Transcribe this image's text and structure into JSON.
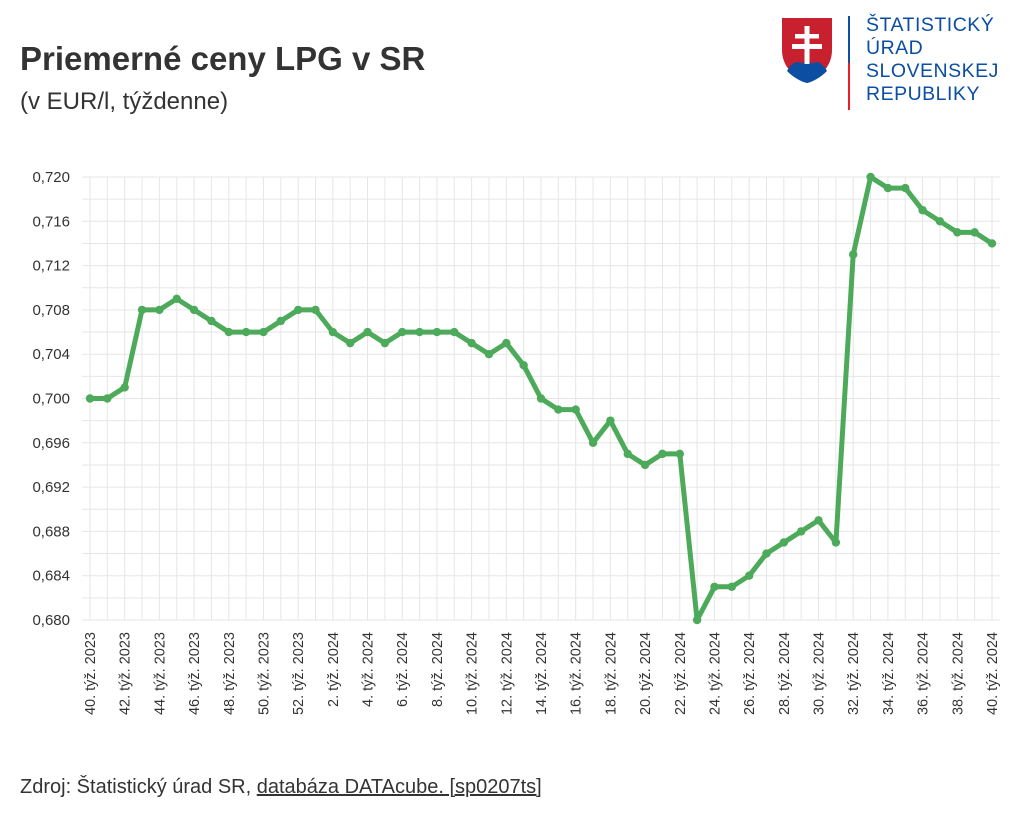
{
  "header": {
    "title": "Priemerné ceny LPG v SR",
    "subtitle": "(v EUR/l, týždenne)"
  },
  "logo": {
    "lines": [
      "ŠTATISTICKÝ",
      "ÚRAD",
      "SLOVENSKEJ",
      "REPUBLIKY"
    ],
    "icon": "slovak-coat-of-arms-icon",
    "text_color": "#0b4ea2",
    "line_color_top": "#0b4ea2",
    "line_color_bottom": "#ee1c25"
  },
  "source": {
    "prefix": "Zdroj: Štatistický úrad SR, ",
    "link_text": "databáza DATAcube. [sp0207ts]"
  },
  "colors": {
    "line": "#4caa5a",
    "grid": "#e6e6e6"
  },
  "chart_data": {
    "type": "line",
    "ylim": [
      0.68,
      0.72
    ],
    "yticks": [
      "0,720",
      "0,716",
      "0,712",
      "0,708",
      "0,704",
      "0,700",
      "0,696",
      "0,692",
      "0,688",
      "0,684",
      "0,680"
    ],
    "ytick_values": [
      0.72,
      0.716,
      0.712,
      0.708,
      0.704,
      0.7,
      0.696,
      0.692,
      0.688,
      0.684,
      0.68
    ],
    "grid": true,
    "x": [
      "40. týž. 2023",
      "41. týž. 2023",
      "42. týž. 2023",
      "43. týž. 2023",
      "44. týž. 2023",
      "45. týž. 2023",
      "46. týž. 2023",
      "47. týž. 2023",
      "48. týž. 2023",
      "49. týž. 2023",
      "50. týž. 2023",
      "51. týž. 2023",
      "52. týž. 2023",
      "1. týž. 2024",
      "2. týž. 2024",
      "3. týž. 2024",
      "4. týž. 2024",
      "5. týž. 2024",
      "6. týž. 2024",
      "7. týž. 2024",
      "8. týž. 2024",
      "9. týž. 2024",
      "10. týž. 2024",
      "11. týž. 2024",
      "12. týž. 2024",
      "13. týž. 2024",
      "14. týž. 2024",
      "15. týž. 2024",
      "16. týž. 2024",
      "17. týž. 2024",
      "18. týž. 2024",
      "19. týž. 2024",
      "20. týž. 2024",
      "21. týž. 2024",
      "22. týž. 2024",
      "23. týž. 2024",
      "24. týž. 2024",
      "25. týž. 2024",
      "26. týž. 2024",
      "27. týž. 2024",
      "28. týž. 2024",
      "29. týž. 2024",
      "30. týž. 2024",
      "31. týž. 2024",
      "32. týž. 2024",
      "33. týž. 2024",
      "34. týž. 2024",
      "35. týž. 2024",
      "36. týž. 2024",
      "37. týž. 2024",
      "38. týž. 2024",
      "39. týž. 2024",
      "40. týž. 2024"
    ],
    "xtick_labels": [
      "40. týž. 2023",
      "42. týž. 2023",
      "44. týž. 2023",
      "46. týž. 2023",
      "48. týž. 2023",
      "50. týž. 2023",
      "52. týž. 2023",
      "2. týž. 2024",
      "4. týž. 2024",
      "6. týž. 2024",
      "8. týž. 2024",
      "10. týž. 2024",
      "12. týž. 2024",
      "14. týž. 2024",
      "16. týž. 2024",
      "18. týž. 2024",
      "20. týž. 2024",
      "22. týž. 2024",
      "24. týž. 2024",
      "26. týž. 2024",
      "28. týž. 2024",
      "30. týž. 2024",
      "32. týž. 2024",
      "34. týž. 2024",
      "36. týž. 2024",
      "38. týž. 2024",
      "40. týž. 2024"
    ],
    "series": [
      {
        "values": [
          0.7,
          0.7,
          0.701,
          0.708,
          0.708,
          0.709,
          0.708,
          0.707,
          0.706,
          0.706,
          0.706,
          0.707,
          0.708,
          0.708,
          0.706,
          0.705,
          0.706,
          0.705,
          0.706,
          0.706,
          0.706,
          0.706,
          0.705,
          0.704,
          0.705,
          0.703,
          0.7,
          0.699,
          0.699,
          0.696,
          0.698,
          0.695,
          0.694,
          0.695,
          0.695,
          0.68,
          0.683,
          0.683,
          0.684,
          0.686,
          0.687,
          0.688,
          0.689,
          0.687,
          0.713,
          0.72,
          0.719,
          0.719,
          0.717,
          0.716,
          0.715,
          0.715,
          0.714
        ]
      }
    ]
  }
}
